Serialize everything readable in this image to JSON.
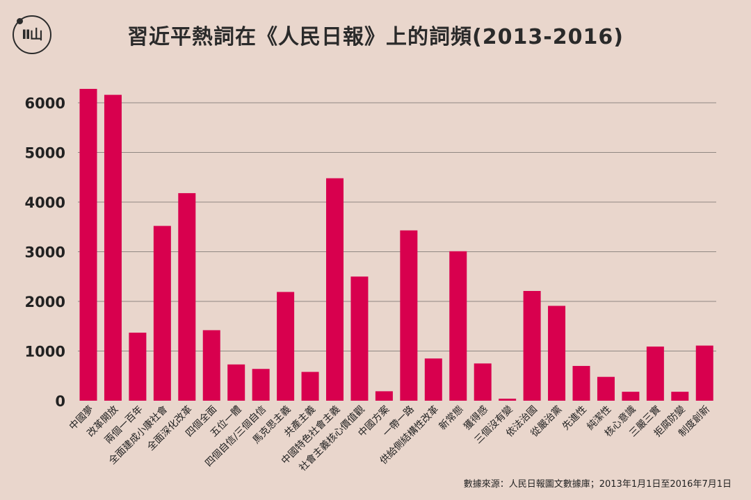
{
  "title": "習近平熱詞在《人民日報》上的詞頻(2013-2016)",
  "logo": {
    "mark": "Ⅱ山\nⅡ而"
  },
  "source": "數據來源：人民日報圖文數據庫；2013年1月1日至2016年7月1日",
  "colors": {
    "bar": "#d8004e",
    "grid": "#8f8782",
    "text": "#222222",
    "background": "#e9d6cc"
  },
  "chart_data": {
    "type": "bar",
    "title": "習近平熱詞在《人民日報》上的詞頻(2013-2016)",
    "xlabel": "",
    "ylabel": "",
    "ylim": [
      0,
      6000
    ],
    "yticks": [
      0,
      1000,
      2000,
      3000,
      4000,
      5000,
      6000
    ],
    "grid": true,
    "categories": [
      "中國夢",
      "改革開放",
      "兩個一百年",
      "全面建成小康社會",
      "全面深化改革",
      "四個全面",
      "五位一體",
      "四個自信/三個自信",
      "馬克思主義",
      "共產主義",
      "中國特色社會主義",
      "社會主義核心價值觀",
      "中國方案",
      "一帶一路",
      "供給側結構性改革",
      "新常態",
      "獲得感",
      "三個沒有變",
      "依法治國",
      "從嚴治黨",
      "先進性",
      "純潔性",
      "核心意識",
      "三嚴三實",
      "拒腐防變",
      "制度創新"
    ],
    "values": [
      6280,
      6160,
      1370,
      3520,
      4180,
      1420,
      730,
      640,
      2190,
      580,
      4480,
      2500,
      190,
      3430,
      850,
      3010,
      750,
      40,
      2210,
      1910,
      700,
      480,
      180,
      1090,
      180,
      1110
    ]
  }
}
